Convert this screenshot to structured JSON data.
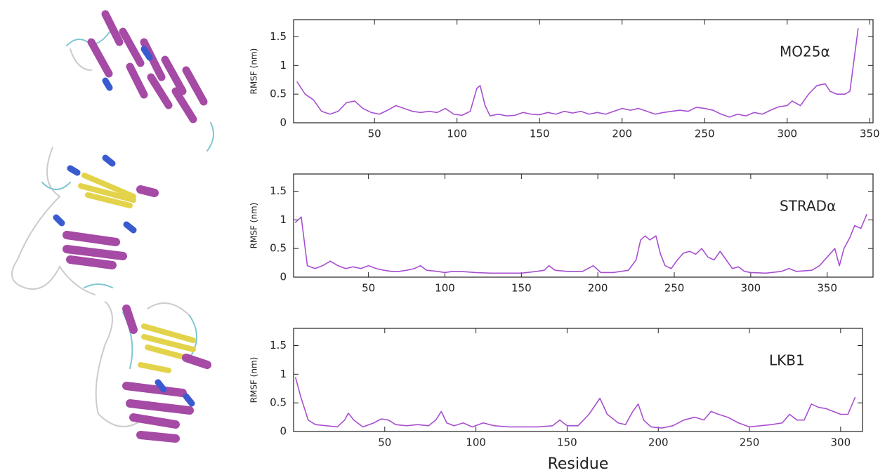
{
  "chart_data": [
    {
      "type": "line",
      "ylabel": "RMSF (nm)",
      "x": [
        3,
        8,
        13,
        18,
        23,
        28,
        33,
        38,
        43,
        48,
        53,
        58,
        63,
        68,
        73,
        78,
        83,
        88,
        93,
        98,
        103,
        108,
        112,
        114,
        117,
        120,
        125,
        130,
        135,
        140,
        145,
        150,
        155,
        160,
        165,
        170,
        175,
        180,
        185,
        190,
        195,
        200,
        205,
        210,
        215,
        220,
        225,
        230,
        235,
        240,
        245,
        250,
        255,
        260,
        265,
        270,
        275,
        280,
        285,
        290,
        295,
        300,
        303,
        308,
        313,
        318,
        323,
        326,
        330,
        335,
        338,
        343
      ],
      "series": [
        {
          "name": "MO25α",
          "color": "#a84fd0",
          "values": [
            0.72,
            0.5,
            0.4,
            0.2,
            0.15,
            0.2,
            0.35,
            0.38,
            0.25,
            0.18,
            0.15,
            0.22,
            0.3,
            0.25,
            0.2,
            0.18,
            0.2,
            0.18,
            0.25,
            0.15,
            0.13,
            0.2,
            0.6,
            0.65,
            0.3,
            0.12,
            0.15,
            0.12,
            0.13,
            0.18,
            0.15,
            0.14,
            0.18,
            0.15,
            0.2,
            0.17,
            0.2,
            0.15,
            0.18,
            0.15,
            0.2,
            0.25,
            0.22,
            0.25,
            0.2,
            0.15,
            0.18,
            0.2,
            0.22,
            0.2,
            0.27,
            0.25,
            0.22,
            0.15,
            0.1,
            0.15,
            0.12,
            0.18,
            0.15,
            0.22,
            0.28,
            0.3,
            0.38,
            0.3,
            0.5,
            0.65,
            0.68,
            0.55,
            0.5,
            0.5,
            0.55,
            1.65
          ]
        }
      ],
      "xlim": [
        1,
        352
      ],
      "ylim": [
        0,
        1.8
      ],
      "xticks": [
        50,
        100,
        150,
        200,
        250,
        300,
        350
      ],
      "yticks": [
        0,
        0.5,
        1,
        1.5
      ]
    },
    {
      "type": "line",
      "ylabel": "RMSF (nm)",
      "x": [
        2,
        6,
        10,
        15,
        20,
        25,
        30,
        35,
        40,
        45,
        50,
        55,
        60,
        65,
        70,
        75,
        80,
        84,
        88,
        95,
        100,
        105,
        110,
        120,
        130,
        140,
        150,
        160,
        165,
        168,
        172,
        180,
        190,
        197,
        202,
        210,
        220,
        225,
        228,
        231,
        234,
        238,
        241,
        244,
        248,
        252,
        256,
        260,
        264,
        268,
        272,
        276,
        280,
        284,
        288,
        292,
        296,
        300,
        310,
        320,
        325,
        330,
        340,
        345,
        350,
        355,
        358,
        361,
        365,
        368,
        372,
        376
      ],
      "series": [
        {
          "name": "STRADα",
          "color": "#a84fd0",
          "values": [
            0.95,
            1.05,
            0.2,
            0.15,
            0.2,
            0.28,
            0.2,
            0.15,
            0.18,
            0.15,
            0.2,
            0.15,
            0.12,
            0.1,
            0.1,
            0.12,
            0.15,
            0.2,
            0.12,
            0.1,
            0.08,
            0.1,
            0.1,
            0.08,
            0.07,
            0.07,
            0.07,
            0.1,
            0.12,
            0.2,
            0.12,
            0.1,
            0.1,
            0.2,
            0.08,
            0.08,
            0.12,
            0.3,
            0.65,
            0.72,
            0.65,
            0.72,
            0.4,
            0.2,
            0.15,
            0.3,
            0.42,
            0.45,
            0.4,
            0.5,
            0.35,
            0.3,
            0.45,
            0.3,
            0.15,
            0.18,
            0.1,
            0.08,
            0.07,
            0.1,
            0.15,
            0.1,
            0.12,
            0.2,
            0.35,
            0.5,
            0.2,
            0.5,
            0.7,
            0.9,
            0.85,
            1.1
          ]
        }
      ],
      "xlim": [
        1,
        380
      ],
      "ylim": [
        0,
        1.8
      ],
      "xticks": [
        50,
        100,
        150,
        200,
        250,
        300,
        350
      ],
      "yticks": [
        0,
        0.5,
        1,
        1.5
      ]
    },
    {
      "type": "line",
      "ylabel": "RMSF (nm)",
      "xlabel": "Residue",
      "x": [
        1,
        4,
        8,
        12,
        18,
        24,
        28,
        30,
        33,
        38,
        44,
        48,
        52,
        56,
        62,
        68,
        74,
        78,
        81,
        84,
        88,
        93,
        98,
        104,
        110,
        118,
        126,
        134,
        142,
        146,
        150,
        156,
        162,
        168,
        172,
        178,
        182,
        186,
        189,
        192,
        196,
        202,
        208,
        214,
        220,
        225,
        229,
        233,
        238,
        244,
        250,
        256,
        262,
        268,
        272,
        276,
        280,
        284,
        288,
        292,
        296,
        300,
        304,
        308
      ],
      "series": [
        {
          "name": "LKB1",
          "color": "#a84fd0",
          "values": [
            0.95,
            0.6,
            0.2,
            0.12,
            0.1,
            0.08,
            0.2,
            0.32,
            0.2,
            0.08,
            0.15,
            0.22,
            0.2,
            0.12,
            0.1,
            0.12,
            0.1,
            0.2,
            0.35,
            0.15,
            0.1,
            0.15,
            0.08,
            0.15,
            0.1,
            0.08,
            0.08,
            0.08,
            0.1,
            0.2,
            0.1,
            0.1,
            0.3,
            0.58,
            0.3,
            0.15,
            0.12,
            0.35,
            0.48,
            0.2,
            0.08,
            0.06,
            0.1,
            0.2,
            0.25,
            0.2,
            0.35,
            0.3,
            0.25,
            0.15,
            0.08,
            0.1,
            0.12,
            0.15,
            0.3,
            0.2,
            0.2,
            0.48,
            0.42,
            0.4,
            0.35,
            0.3,
            0.3,
            0.6
          ]
        }
      ],
      "xlim": [
        0,
        312
      ],
      "ylim": [
        0,
        1.8
      ],
      "xticks": [
        50,
        100,
        150,
        200,
        250,
        300
      ],
      "yticks": [
        0,
        0.5,
        1,
        1.5
      ]
    }
  ]
}
